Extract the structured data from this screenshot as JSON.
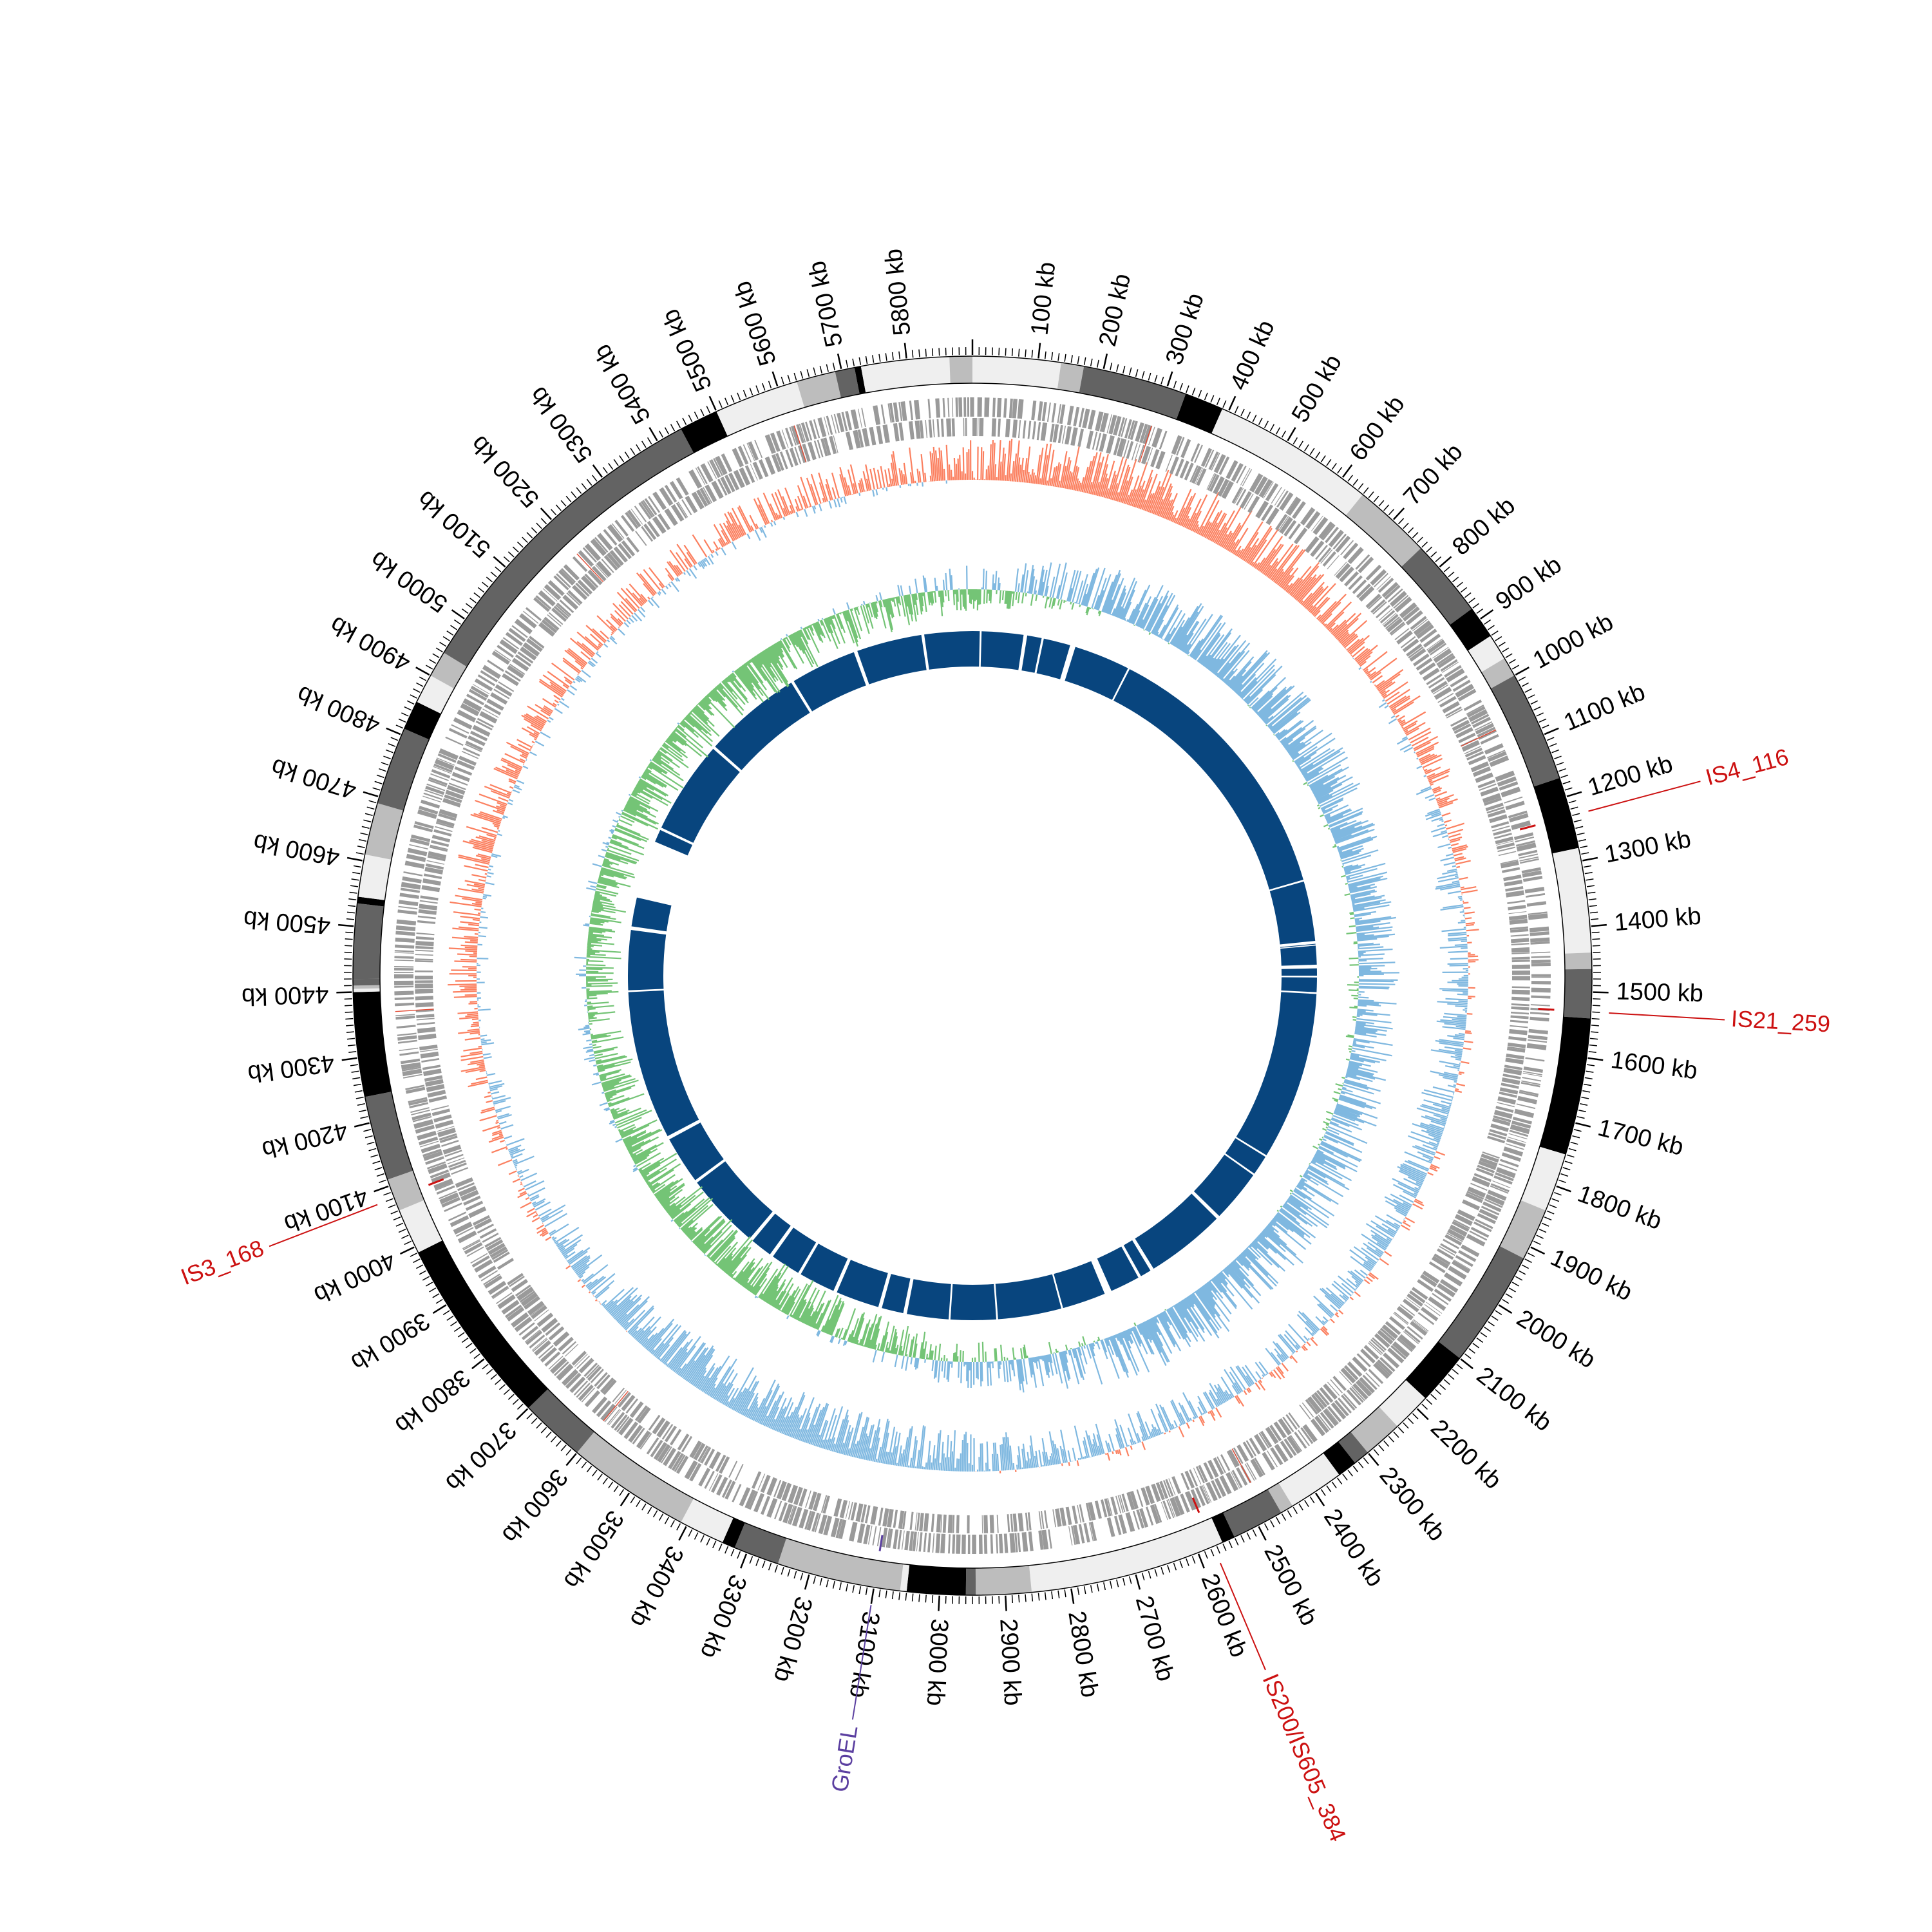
{
  "genome": {
    "length_kb": 5900,
    "tick_step_kb": 100
  },
  "tick_labels": [
    "100 kb",
    "200 kb",
    "300 kb",
    "400 kb",
    "500 kb",
    "600 kb",
    "700 kb",
    "800 kb",
    "900 kb",
    "1000 kb",
    "1100 kb",
    "1200 kb",
    "1300 kb",
    "1400 kb",
    "1500 kb",
    "1600 kb",
    "1700 kb",
    "1800 kb",
    "1900 kb",
    "2000 kb",
    "2100 kb",
    "2200 kb",
    "2300 kb",
    "2400 kb",
    "2500 kb",
    "2600 kb",
    "2700 kb",
    "2800 kb",
    "2900 kb",
    "3000 kb",
    "3100 kb",
    "3200 kb",
    "3300 kb",
    "3400 kb",
    "3500 kb",
    "3600 kb",
    "3700 kb",
    "3800 kb",
    "3900 kb",
    "4000 kb",
    "4100 kb",
    "4200 kb",
    "4300 kb",
    "4400 kb",
    "4500 kb",
    "4600 kb",
    "4700 kb",
    "4800 kb",
    "4900 kb",
    "5000 kb",
    "5100 kb",
    "5200 kb",
    "5300 kb",
    "5400 kb",
    "5500 kb",
    "5600 kb",
    "5700 kb",
    "5800 kb"
  ],
  "ideogram_bands": [
    {
      "start": 0,
      "end": 135,
      "shade": "#efefef"
    },
    {
      "start": 135,
      "end": 170,
      "shade": "#bdbdbd"
    },
    {
      "start": 170,
      "end": 330,
      "shade": "#636363"
    },
    {
      "start": 330,
      "end": 390,
      "shade": "#000000"
    },
    {
      "start": 390,
      "end": 640,
      "shade": "#efefef"
    },
    {
      "start": 640,
      "end": 760,
      "shade": "#bdbdbd"
    },
    {
      "start": 760,
      "end": 880,
      "shade": "#636363"
    },
    {
      "start": 880,
      "end": 930,
      "shade": "#000000"
    },
    {
      "start": 930,
      "end": 970,
      "shade": "#efefef"
    },
    {
      "start": 970,
      "end": 1000,
      "shade": "#bdbdbd"
    },
    {
      "start": 1000,
      "end": 1170,
      "shade": "#636363"
    },
    {
      "start": 1170,
      "end": 1280,
      "shade": "#000000"
    },
    {
      "start": 1280,
      "end": 1440,
      "shade": "#efefef"
    },
    {
      "start": 1440,
      "end": 1465,
      "shade": "#bdbdbd"
    },
    {
      "start": 1465,
      "end": 1540,
      "shade": "#636363"
    },
    {
      "start": 1540,
      "end": 1750,
      "shade": "#000000"
    },
    {
      "start": 1750,
      "end": 1840,
      "shade": "#efefef"
    },
    {
      "start": 1840,
      "end": 1920,
      "shade": "#bdbdbd"
    },
    {
      "start": 1920,
      "end": 2100,
      "shade": "#636363"
    },
    {
      "start": 2100,
      "end": 2180,
      "shade": "#000000"
    },
    {
      "start": 2180,
      "end": 2240,
      "shade": "#efefef"
    },
    {
      "start": 2240,
      "end": 2300,
      "shade": "#bdbdbd"
    },
    {
      "start": 2300,
      "end": 2325,
      "shade": "#636363"
    },
    {
      "start": 2325,
      "end": 2355,
      "shade": "#000000"
    },
    {
      "start": 2355,
      "end": 2440,
      "shade": "#efefef"
    },
    {
      "start": 2440,
      "end": 2460,
      "shade": "#bdbdbd"
    },
    {
      "start": 2460,
      "end": 2540,
      "shade": "#636363"
    },
    {
      "start": 2540,
      "end": 2560,
      "shade": "#000000"
    },
    {
      "start": 2560,
      "end": 2860,
      "shade": "#efefef"
    },
    {
      "start": 2860,
      "end": 2945,
      "shade": "#bdbdbd"
    },
    {
      "start": 2945,
      "end": 2960,
      "shade": "#636363"
    },
    {
      "start": 2960,
      "end": 3050,
      "shade": "#000000"
    },
    {
      "start": 3050,
      "end": 3060,
      "shade": "#efefef"
    },
    {
      "start": 3060,
      "end": 3250,
      "shade": "#bdbdbd"
    },
    {
      "start": 3250,
      "end": 3320,
      "shade": "#636363"
    },
    {
      "start": 3320,
      "end": 3340,
      "shade": "#000000"
    },
    {
      "start": 3340,
      "end": 3410,
      "shade": "#efefef"
    },
    {
      "start": 3410,
      "end": 3600,
      "shade": "#bdbdbd"
    },
    {
      "start": 3600,
      "end": 3700,
      "shade": "#636363"
    },
    {
      "start": 3700,
      "end": 3990,
      "shade": "#000000"
    },
    {
      "start": 3990,
      "end": 4060,
      "shade": "#efefef"
    },
    {
      "start": 4060,
      "end": 4110,
      "shade": "#bdbdbd"
    },
    {
      "start": 4110,
      "end": 4240,
      "shade": "#636363"
    },
    {
      "start": 4240,
      "end": 4400,
      "shade": "#000000"
    },
    {
      "start": 4400,
      "end": 4405,
      "shade": "#efefef"
    },
    {
      "start": 4405,
      "end": 4410,
      "shade": "#bdbdbd"
    },
    {
      "start": 4410,
      "end": 4420,
      "shade": "#636363"
    },
    {
      "start": 4420,
      "end": 4535,
      "shade": "#636363"
    },
    {
      "start": 4535,
      "end": 4545,
      "shade": "#000000"
    },
    {
      "start": 4545,
      "end": 4610,
      "shade": "#efefef"
    },
    {
      "start": 4610,
      "end": 4690,
      "shade": "#bdbdbd"
    },
    {
      "start": 4690,
      "end": 4810,
      "shade": "#636363"
    },
    {
      "start": 4810,
      "end": 4855,
      "shade": "#000000"
    },
    {
      "start": 4855,
      "end": 4900,
      "shade": "#efefef"
    },
    {
      "start": 4900,
      "end": 4940,
      "shade": "#bdbdbd"
    },
    {
      "start": 4940,
      "end": 5440,
      "shade": "#636363"
    },
    {
      "start": 5440,
      "end": 5500,
      "shade": "#000000"
    },
    {
      "start": 5500,
      "end": 5630,
      "shade": "#efefef"
    },
    {
      "start": 5630,
      "end": 5690,
      "shade": "#bdbdbd"
    },
    {
      "start": 5690,
      "end": 5720,
      "shade": "#636363"
    },
    {
      "start": 5720,
      "end": 5730,
      "shade": "#000000"
    },
    {
      "start": 5730,
      "end": 5865,
      "shade": "#efefef"
    },
    {
      "start": 5865,
      "end": 5900,
      "shade": "#bdbdbd"
    }
  ],
  "tracks": {
    "genes_color": "#9a9a9a",
    "gc_skew_positive_color": "#fb8060",
    "gc_skew_negative_color": "#7fb8e0",
    "gc_content_above_color": "#7fb8e0",
    "gc_content_below_color": "#74c476",
    "inner_blocks_color": "#08457e"
  },
  "inner_blocks": [
    {
      "start": 0,
      "end": 20
    },
    {
      "start": 25,
      "end": 140
    },
    {
      "start": 150,
      "end": 190
    },
    {
      "start": 196,
      "end": 270
    },
    {
      "start": 285,
      "end": 440
    },
    {
      "start": 445,
      "end": 1210
    },
    {
      "start": 1215,
      "end": 1380
    },
    {
      "start": 1388,
      "end": 1390
    },
    {
      "start": 1393,
      "end": 1445
    },
    {
      "start": 1455,
      "end": 1475
    },
    {
      "start": 1480,
      "end": 1520
    },
    {
      "start": 1525,
      "end": 1990
    },
    {
      "start": 1995,
      "end": 2050
    },
    {
      "start": 2055,
      "end": 2200
    },
    {
      "start": 2210,
      "end": 2430
    },
    {
      "start": 2440,
      "end": 2470
    },
    {
      "start": 2478,
      "end": 2560
    },
    {
      "start": 2580,
      "end": 2700
    },
    {
      "start": 2705,
      "end": 2880
    },
    {
      "start": 2885,
      "end": 3010
    },
    {
      "start": 3015,
      "end": 3130
    },
    {
      "start": 3140,
      "end": 3200
    },
    {
      "start": 3210,
      "end": 3330
    },
    {
      "start": 3340,
      "end": 3440
    },
    {
      "start": 3448,
      "end": 3530
    },
    {
      "start": 3540,
      "end": 3600
    },
    {
      "start": 3610,
      "end": 3820
    },
    {
      "start": 3828,
      "end": 3960
    },
    {
      "start": 3970,
      "end": 4380
    },
    {
      "start": 4385,
      "end": 4550
    },
    {
      "start": 4560,
      "end": 4640
    },
    {
      "start": 4800,
      "end": 4835
    },
    {
      "start": 4842,
      "end": 5100
    },
    {
      "start": 5108,
      "end": 5380
    },
    {
      "start": 5388,
      "end": 5570
    },
    {
      "start": 5580,
      "end": 5760
    },
    {
      "start": 5768,
      "end": 5900
    }
  ],
  "features": [
    {
      "label": "IS4_116",
      "position_kb": 1230,
      "color": "#cc1111"
    },
    {
      "label": "IS21_259",
      "position_kb": 1530,
      "color": "#cc1111"
    },
    {
      "label": "IS200/IS605_384",
      "position_kb": 2575,
      "color": "#cc1111"
    },
    {
      "label": "GroEL",
      "position_kb": 3100,
      "color": "#5b3fa0"
    },
    {
      "label": "IS3_168",
      "position_kb": 4080,
      "color": "#cc1111"
    }
  ]
}
